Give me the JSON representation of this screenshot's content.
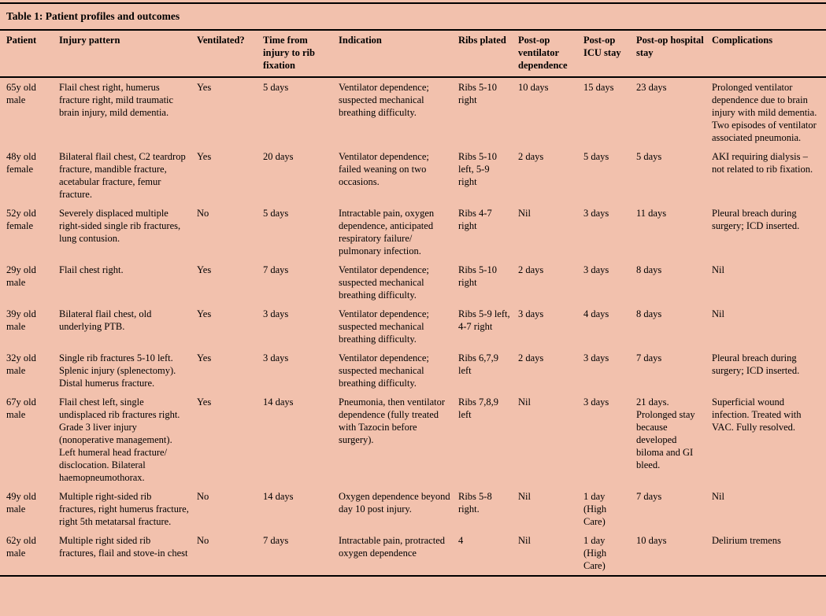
{
  "colors": {
    "background": "#f2c1ad",
    "rule": "#000000",
    "text": "#000000"
  },
  "table": {
    "title": "Table 1: Patient profiles and outcomes",
    "columns": [
      "Patient",
      "Injury pattern",
      "Ventilated?",
      "Time from injury to rib fixation",
      "Indication",
      "Ribs plated",
      "Post-op ventilator dependence",
      "Post-op ICU stay",
      "Post-op hospital stay",
      "Complications"
    ],
    "rows": [
      [
        "65y old male",
        "Flail chest right, humerus fracture right, mild traumatic brain injury, mild dementia.",
        "Yes",
        "5 days",
        "Ventilator dependence; suspected mechanical breathing difficulty.",
        "Ribs 5-10 right",
        "10 days",
        "15 days",
        "23 days",
        "Prolonged ventilator dependence due to brain injury with mild dementia. Two episodes of ventilator associated pneumonia."
      ],
      [
        "48y old female",
        "Bilateral flail chest, C2 teardrop fracture, mandible fracture, acetabular fracture, femur fracture.",
        "Yes",
        "20 days",
        "Ventilator dependence; failed weaning on two occasions.",
        "Ribs 5-10 left, 5-9 right",
        "2 days",
        "5 days",
        "5 days",
        "AKI requiring dialysis – not related to rib fixation."
      ],
      [
        "52y old female",
        "Severely displaced multiple right-sided single rib fractures, lung contusion.",
        "No",
        "5 days",
        "Intractable pain, oxygen dependence, anticipated respiratory failure/ pulmonary infection.",
        "Ribs 4-7 right",
        "Nil",
        "3 days",
        "11 days",
        "Pleural breach during surgery; ICD inserted."
      ],
      [
        "29y old male",
        "Flail chest right.",
        "Yes",
        "7 days",
        "Ventilator dependence; suspected mechanical breathing difficulty.",
        "Ribs 5-10 right",
        "2 days",
        "3 days",
        "8 days",
        "Nil"
      ],
      [
        "39y old male",
        "Bilateral flail chest, old underlying PTB.",
        "Yes",
        "3 days",
        "Ventilator dependence; suspected mechanical breathing difficulty.",
        "Ribs 5-9 left, 4-7 right",
        "3 days",
        "4 days",
        "8 days",
        "Nil"
      ],
      [
        "32y old male",
        "Single rib fractures 5-10 left. Splenic injury (splenectomy). Distal humerus fracture.",
        "Yes",
        "3 days",
        "Ventilator dependence; suspected mechanical breathing difficulty.",
        "Ribs 6,7,9 left",
        "2 days",
        "3 days",
        "7 days",
        "Pleural breach during surgery; ICD inserted."
      ],
      [
        "67y old male",
        "Flail chest left, single undisplaced rib fractures right. Grade 3 liver injury (nonoperative management). Left humeral head fracture/ disclocation. Bilateral haemopneumothorax.",
        "Yes",
        "14 days",
        "Pneumonia, then ventilator dependence (fully treated with Tazocin before surgery).",
        "Ribs 7,8,9 left",
        "Nil",
        "3 days",
        "21 days. Prolonged stay because developed biloma and GI bleed.",
        "Superficial wound infection. Treated with VAC. Fully resolved."
      ],
      [
        "49y old male",
        "Multiple right-sided rib fractures, right humerus fracture, right 5th metatarsal fracture.",
        "No",
        "14 days",
        "Oxygen dependence beyond day 10 post injury.",
        "Ribs 5-8 right.",
        "Nil",
        "1 day (High Care)",
        "7 days",
        "Nil"
      ],
      [
        "62y old male",
        "Multiple right sided rib fractures, flail and stove-in chest",
        "No",
        "7 days",
        "Intractable pain, protracted oxygen dependence",
        "4",
        "Nil",
        "1 day (High Care)",
        "10 days",
        "Delirium tremens"
      ]
    ]
  }
}
